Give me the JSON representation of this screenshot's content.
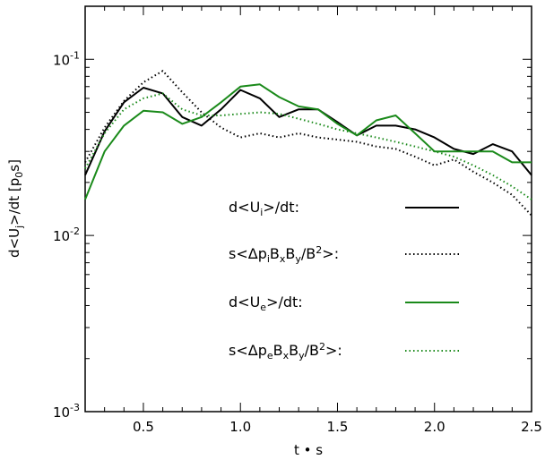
{
  "chart_data": {
    "type": "line",
    "title": "",
    "xlabel": "t • s",
    "ylabel": "d<U_j>/dt [p_0s]",
    "yscale": "log",
    "xlim": [
      0.2,
      2.5
    ],
    "ylim": [
      0.001,
      0.2
    ],
    "grid": false,
    "legend_placement": "lower-right",
    "x_ticks": [
      {
        "value": 0.5,
        "label": "0.5"
      },
      {
        "value": 1.0,
        "label": "1.0"
      },
      {
        "value": 1.5,
        "label": "1.5"
      },
      {
        "value": 2.0,
        "label": "2.0"
      },
      {
        "value": 2.5,
        "label": "2.5"
      }
    ],
    "y_ticks": [
      {
        "value": 0.1,
        "base": "10",
        "exp": "-1"
      },
      {
        "value": 0.01,
        "base": "10",
        "exp": "-2"
      },
      {
        "value": 0.001,
        "base": "10",
        "exp": "-3"
      }
    ],
    "x": [
      0.2,
      0.3,
      0.4,
      0.5,
      0.6,
      0.7,
      0.8,
      0.9,
      1.0,
      1.1,
      1.2,
      1.3,
      1.4,
      1.5,
      1.6,
      1.7,
      1.8,
      1.9,
      2.0,
      2.1,
      2.2,
      2.3,
      2.4,
      2.5
    ],
    "series": [
      {
        "label_parts": [
          "d<U",
          "i",
          ">/dt:"
        ],
        "label_sub": [
          false,
          true,
          false
        ],
        "color": "#000000",
        "style": "solid",
        "values": [
          0.022,
          0.039,
          0.057,
          0.069,
          0.064,
          0.047,
          0.042,
          0.052,
          0.067,
          0.06,
          0.047,
          0.052,
          0.052,
          0.044,
          0.037,
          0.042,
          0.042,
          0.04,
          0.036,
          0.031,
          0.029,
          0.033,
          0.03,
          0.022
        ]
      },
      {
        "label_parts": [
          "s<Δp",
          "i",
          "B",
          "x",
          "B",
          "y",
          "/B",
          "2",
          ">:"
        ],
        "label_sub": [
          false,
          true,
          false,
          true,
          false,
          true,
          false,
          "sup",
          false
        ],
        "color": "#000000",
        "style": "dotted",
        "values": [
          0.026,
          0.041,
          0.058,
          0.074,
          0.086,
          0.065,
          0.05,
          0.041,
          0.036,
          0.038,
          0.036,
          0.038,
          0.036,
          0.035,
          0.034,
          0.032,
          0.031,
          0.028,
          0.025,
          0.027,
          0.023,
          0.02,
          0.017,
          0.013
        ]
      },
      {
        "label_parts": [
          "d<U",
          "e",
          ">/dt:"
        ],
        "label_sub": [
          false,
          true,
          false
        ],
        "color": "#1a8a1a",
        "style": "solid",
        "values": [
          0.016,
          0.03,
          0.042,
          0.051,
          0.05,
          0.043,
          0.047,
          0.057,
          0.07,
          0.072,
          0.061,
          0.054,
          0.052,
          0.043,
          0.037,
          0.045,
          0.048,
          0.038,
          0.03,
          0.03,
          0.03,
          0.03,
          0.026,
          0.026
        ]
      },
      {
        "label_parts": [
          "s<Δp",
          "e",
          "B",
          "x",
          "B",
          "y",
          "/B",
          "2",
          ">:"
        ],
        "label_sub": [
          false,
          true,
          false,
          true,
          false,
          true,
          false,
          "sup",
          false
        ],
        "color": "#1a8a1a",
        "style": "dotted",
        "values": [
          0.024,
          0.038,
          0.052,
          0.06,
          0.064,
          0.052,
          0.048,
          0.048,
          0.049,
          0.05,
          0.049,
          0.046,
          0.043,
          0.04,
          0.038,
          0.036,
          0.034,
          0.032,
          0.03,
          0.028,
          0.025,
          0.022,
          0.019,
          0.016
        ]
      }
    ]
  }
}
